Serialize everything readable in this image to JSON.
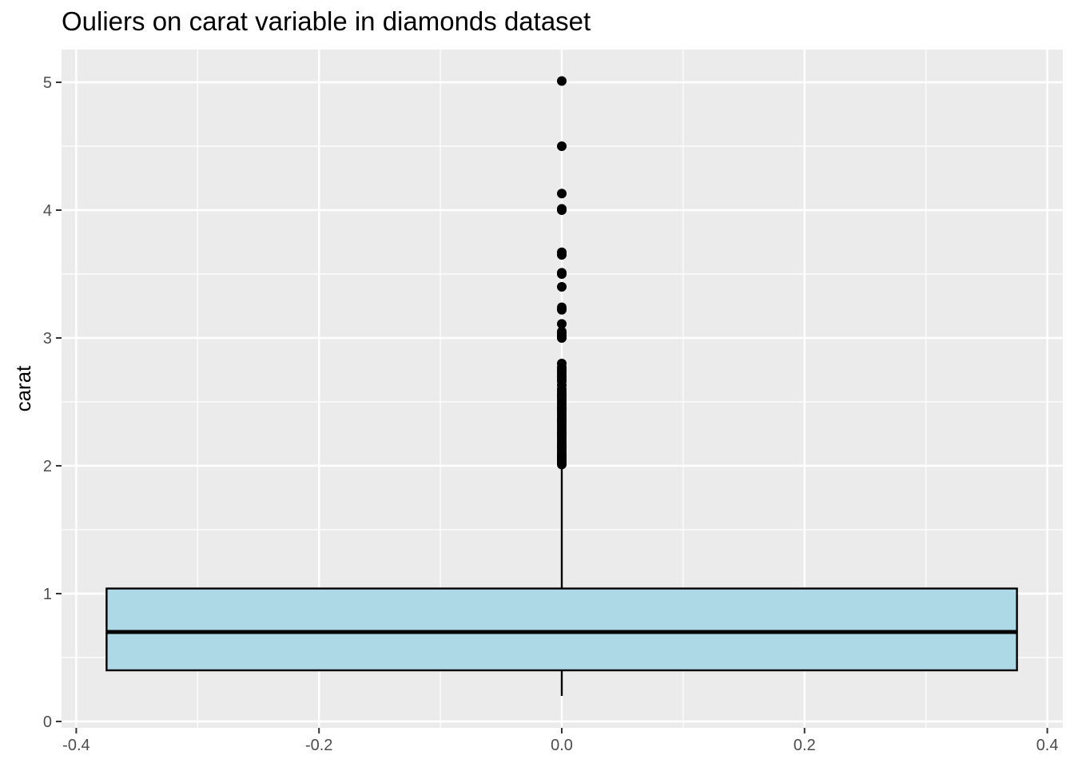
{
  "chart_data": {
    "type": "boxplot",
    "title": "Ouliers on carat variable in diamonds dataset",
    "xlabel": "",
    "ylabel": "carat",
    "xlim": [
      -0.4,
      0.4
    ],
    "ylim": [
      0,
      5
    ],
    "x_ticks": [
      "-0.4",
      "-0.2",
      "0.0",
      "0.2",
      "0.4"
    ],
    "x_tick_values": [
      -0.4,
      -0.2,
      0.0,
      0.2,
      0.4
    ],
    "y_ticks": [
      "0",
      "1",
      "2",
      "3",
      "4",
      "5"
    ],
    "y_tick_values": [
      0,
      1,
      2,
      3,
      4,
      5
    ],
    "grid": true,
    "box": {
      "x": 0.0,
      "x_extent": [
        -0.375,
        0.375
      ],
      "min": 0.2,
      "q1": 0.4,
      "median": 0.7,
      "q3": 1.04,
      "whisker_high": 2.0,
      "fill": "#add8e6"
    },
    "outliers": [
      2.01,
      2.02,
      2.03,
      2.04,
      2.05,
      2.06,
      2.07,
      2.08,
      2.09,
      2.1,
      2.12,
      2.14,
      2.15,
      2.16,
      2.18,
      2.2,
      2.22,
      2.24,
      2.25,
      2.26,
      2.28,
      2.3,
      2.32,
      2.34,
      2.35,
      2.36,
      2.38,
      2.4,
      2.42,
      2.44,
      2.45,
      2.46,
      2.48,
      2.5,
      2.52,
      2.54,
      2.55,
      2.56,
      2.58,
      2.6,
      2.63,
      2.66,
      2.68,
      2.7,
      2.72,
      2.74,
      2.75,
      2.77,
      2.8,
      3.0,
      3.01,
      3.02,
      3.04,
      3.05,
      3.11,
      3.22,
      3.24,
      3.4,
      3.5,
      3.51,
      3.65,
      3.67,
      4.0,
      4.01,
      4.13,
      4.5,
      5.01
    ],
    "colors": {
      "panel_background": "#ebebeb",
      "grid_major": "#ffffff",
      "box_fill": "#add8e6",
      "box_stroke": "#000000",
      "points": "#000000"
    }
  }
}
